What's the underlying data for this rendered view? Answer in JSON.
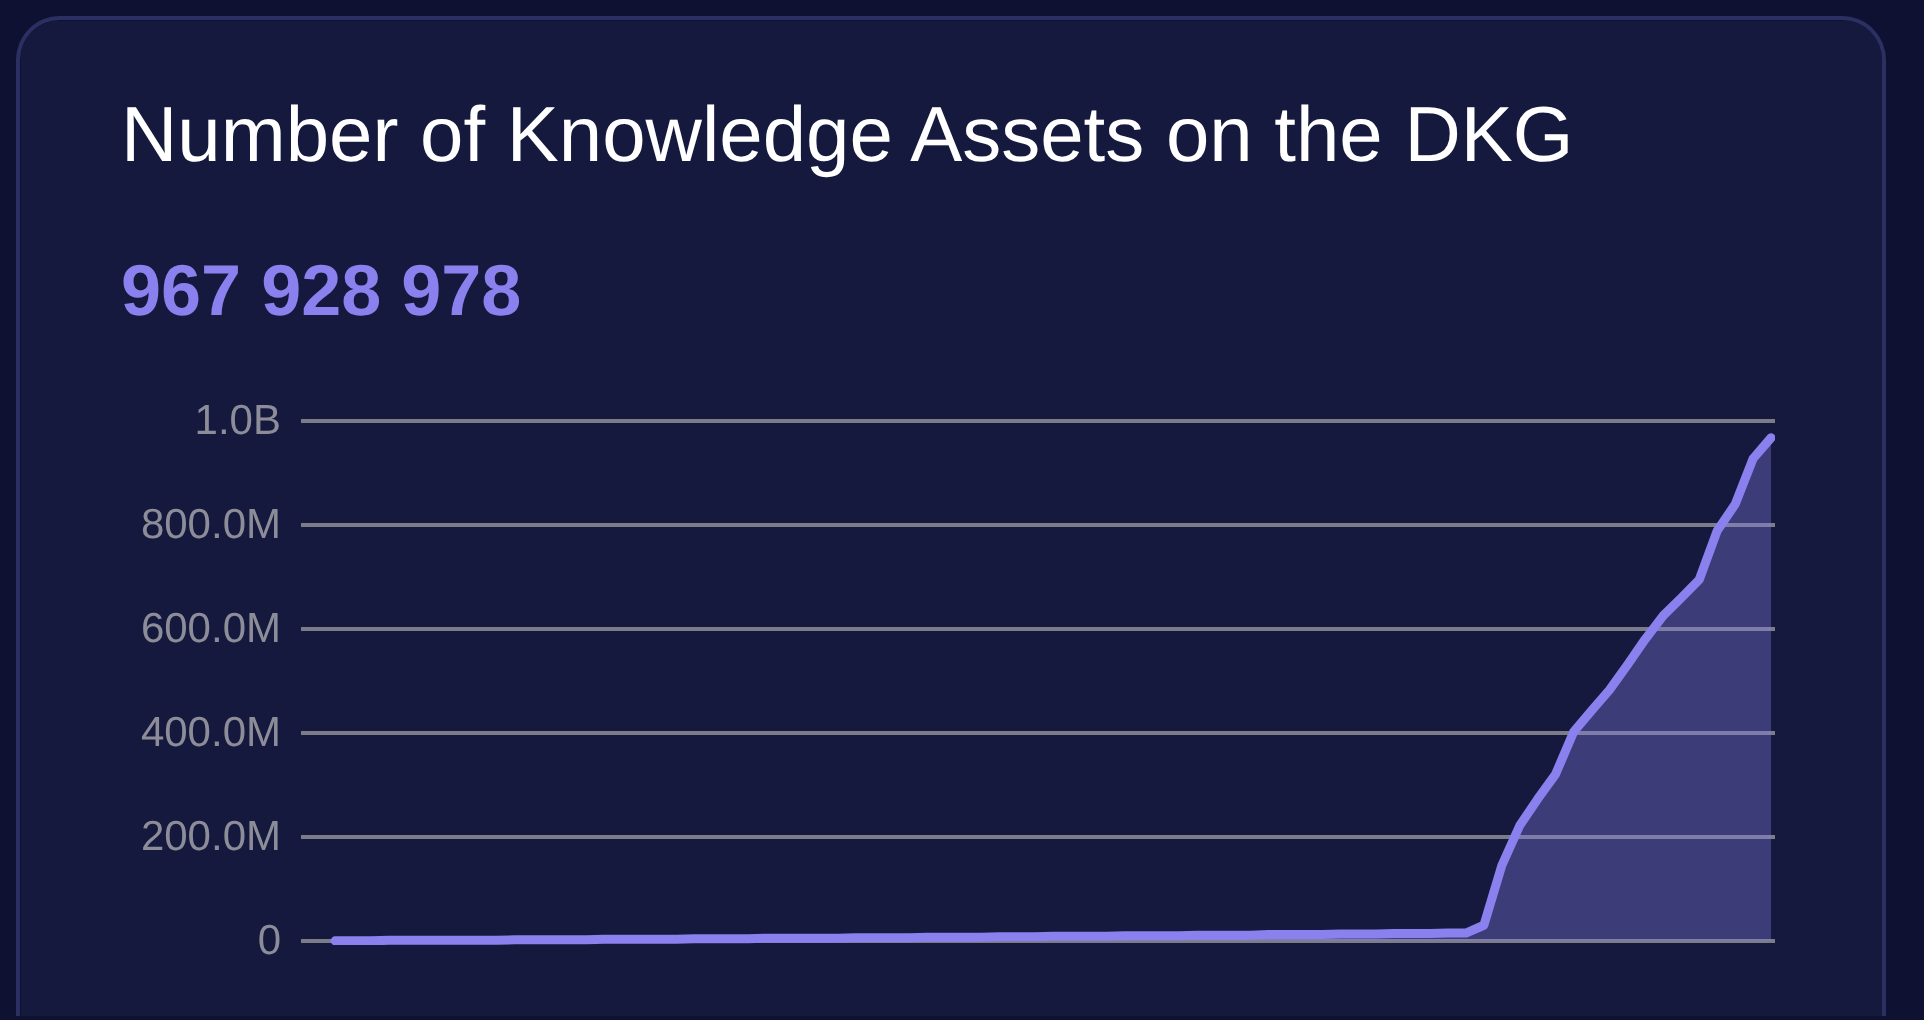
{
  "chart_data": {
    "type": "area",
    "title": "Number of Knowledge Assets on the DKG",
    "subtitle": "967 928 978",
    "categories": [
      null,
      null,
      null,
      null,
      null,
      null,
      null,
      null,
      null,
      null,
      null,
      null,
      null,
      null,
      null,
      null,
      null,
      null,
      null,
      null,
      null,
      null,
      null,
      null,
      null,
      null,
      null,
      null,
      null,
      null,
      null,
      null,
      null,
      null,
      null,
      null,
      null,
      null,
      null,
      null,
      null,
      null,
      null,
      null,
      null,
      null,
      null,
      null,
      null,
      null,
      null,
      null,
      null,
      null,
      null,
      null,
      null,
      null,
      null,
      null,
      null,
      null,
      null,
      null,
      null,
      null,
      null,
      null,
      null,
      null,
      null,
      null,
      null,
      null,
      null,
      null,
      null,
      null,
      null,
      null,
      null
    ],
    "color": "#8a80ee",
    "values": [
      0,
      0,
      0,
      1000000,
      1000000,
      1000000,
      1000000,
      1000000,
      1000000,
      1000000,
      2000000,
      2000000,
      2000000,
      2000000,
      2000000,
      3000000,
      3000000,
      3000000,
      3000000,
      3000000,
      4000000,
      4000000,
      4000000,
      4000000,
      5000000,
      5000000,
      5000000,
      5000000,
      5000000,
      6000000,
      6000000,
      6000000,
      6000000,
      7000000,
      7000000,
      7000000,
      7000000,
      8000000,
      8000000,
      8000000,
      9000000,
      9000000,
      9000000,
      9000000,
      10000000,
      10000000,
      10000000,
      10000000,
      11000000,
      11000000,
      11000000,
      11000000,
      12000000,
      12000000,
      12000000,
      12000000,
      13000000,
      13000000,
      13000000,
      14000000,
      14000000,
      14000000,
      15000000,
      15000000,
      30000000,
      145000000,
      222000000,
      273000000,
      321000000,
      402000000,
      443000000,
      483000000,
      531000000,
      581000000,
      626000000,
      660000000,
      695000000,
      789000000,
      840000000,
      928000000,
      968000000
    ],
    "ylim": [
      0,
      1000000000
    ],
    "yticks": [
      0,
      {
        "value": 200000000,
        "label": "200.0M"
      },
      {
        "value": 400000000,
        "label": "400.0M"
      },
      {
        "value": 600000000,
        "label": "600.0M"
      },
      {
        "value": 800000000,
        "label": "800.0M"
      },
      {
        "value": 1000000000,
        "label": "1.0B"
      }
    ],
    "grid": "y",
    "tick_labels": "y"
  }
}
